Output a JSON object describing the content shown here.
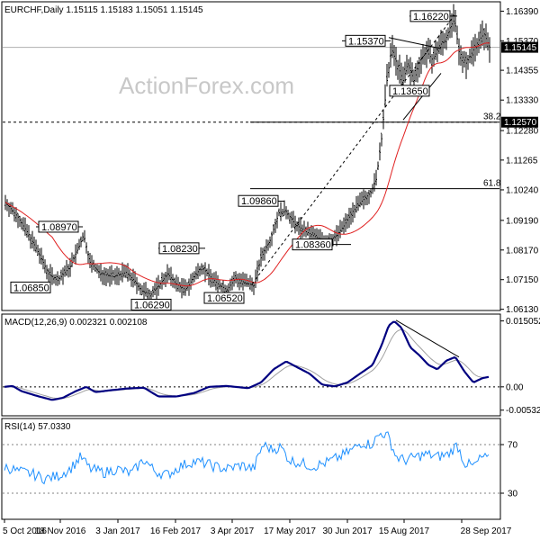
{
  "chart_data": [
    {
      "type": "candlestick",
      "header": "EURCHF,Daily  1.15115 1.15183 1.15051 1.15145",
      "watermark": "ActionForex.com",
      "ylim": [
        1.0615,
        1.1665
      ],
      "y_ticks": [
        "1.16390",
        "1.15370",
        "1.14355",
        "1.13330",
        "1.12280",
        "1.11265",
        "1.10240",
        "1.09190",
        "1.08170",
        "1.07150",
        "1.06130"
      ],
      "x_ticks": [
        "5 Oct 2016",
        "18 Nov 2016",
        "3 Jan 2017",
        "16 Feb 2017",
        "3 Apr 2017",
        "17 May 2017",
        "30 Jun 2017",
        "15 Aug 2017",
        "28 Sep 2017"
      ],
      "current_price": {
        "value": 1.15145,
        "label": "1.15145"
      },
      "annotations": [
        {
          "text": "1.08970",
          "value": 1.0897
        },
        {
          "text": "1.06850",
          "value": 1.0685
        },
        {
          "text": "1.08230",
          "value": 1.0823
        },
        {
          "text": "1.06290",
          "value": 1.0629
        },
        {
          "text": "1.06520",
          "value": 1.0652
        },
        {
          "text": "1.09860",
          "value": 1.0986
        },
        {
          "text": "1.08360",
          "value": 1.0836
        },
        {
          "text": "1.15370",
          "value": 1.1537
        },
        {
          "text": "1.13650",
          "value": 1.1365
        },
        {
          "text": "1.16220",
          "value": 1.1622
        }
      ],
      "fib_levels": [
        {
          "label": "38.2",
          "value": 1.1257,
          "price_label": "1.12570"
        },
        {
          "label": "61.8",
          "value": 1.1028
        }
      ],
      "moving_average_color": "#e02020",
      "price_color": "#000000"
    },
    {
      "type": "line",
      "header": "MACD(12,26,9) 0.002321 0.002108",
      "ylim": [
        -0.0062,
        0.0162
      ],
      "y_ticks": [
        "0.015052",
        "0.00",
        "-0.005321"
      ],
      "series": [
        {
          "role": "macd",
          "color": "#000080"
        },
        {
          "role": "signal",
          "color": "#a0a0a0"
        }
      ]
    },
    {
      "type": "line",
      "header": "RSI(14) 57.0330",
      "ylim": [
        10,
        90
      ],
      "y_ticks": [
        "70",
        "30"
      ],
      "levels": [
        70,
        30
      ],
      "series": [
        {
          "role": "rsi",
          "color": "#1e90ff"
        }
      ]
    }
  ]
}
